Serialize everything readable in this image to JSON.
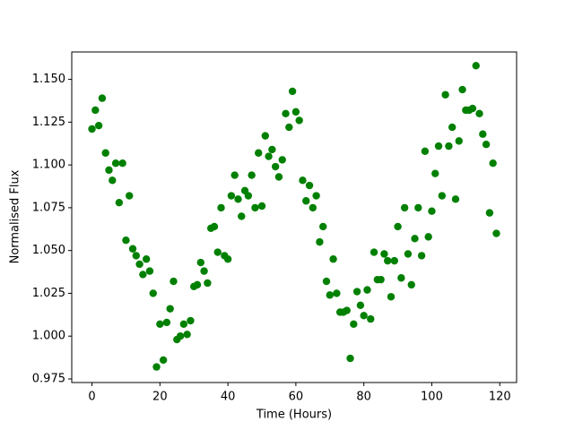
{
  "chart_data": {
    "type": "scatter",
    "xlabel": "Time (Hours)",
    "ylabel": "Normalised Flux",
    "color": "#008000",
    "x": [
      0,
      1,
      2,
      3,
      4,
      5,
      6,
      7,
      8,
      9,
      10,
      11,
      12,
      13,
      14,
      15,
      16,
      17,
      18,
      19,
      20,
      21,
      22,
      23,
      24,
      25,
      26,
      27,
      28,
      29,
      30,
      31,
      32,
      33,
      34,
      35,
      36,
      37,
      38,
      39,
      40,
      41,
      42,
      43,
      44,
      45,
      46,
      47,
      48,
      49,
      50,
      51,
      52,
      53,
      54,
      55,
      56,
      57,
      58,
      59,
      60,
      61,
      62,
      63,
      64,
      65,
      66,
      67,
      68,
      69,
      70,
      71,
      72,
      73,
      74,
      75,
      76,
      77,
      78,
      79,
      80,
      81,
      82,
      83,
      84,
      85,
      86,
      87,
      88,
      89,
      90,
      91,
      92,
      93,
      94,
      95,
      96,
      97,
      98,
      99,
      100,
      101,
      102,
      103,
      104,
      105,
      106,
      107,
      108,
      109,
      110,
      111,
      112,
      113,
      114,
      115,
      116,
      117,
      118,
      119
    ],
    "values": [
      1.121,
      1.132,
      1.123,
      1.139,
      1.107,
      1.097,
      1.091,
      1.101,
      1.078,
      1.101,
      1.056,
      1.082,
      1.051,
      1.047,
      1.042,
      1.036,
      1.045,
      1.038,
      1.025,
      0.982,
      1.007,
      0.986,
      1.008,
      1.016,
      1.032,
      0.998,
      1.0,
      1.007,
      1.001,
      1.009,
      1.029,
      1.03,
      1.043,
      1.038,
      1.031,
      1.063,
      1.064,
      1.049,
      1.075,
      1.047,
      1.045,
      1.082,
      1.094,
      1.08,
      1.07,
      1.085,
      1.082,
      1.094,
      1.075,
      1.107,
      1.076,
      1.117,
      1.105,
      1.109,
      1.099,
      1.093,
      1.103,
      1.13,
      1.122,
      1.143,
      1.131,
      1.126,
      1.091,
      1.079,
      1.088,
      1.075,
      1.082,
      1.055,
      1.064,
      1.032,
      1.024,
      1.045,
      1.025,
      1.014,
      1.014,
      1.015,
      0.987,
      1.007,
      1.026,
      1.018,
      1.012,
      1.027,
      1.01,
      1.049,
      1.033,
      1.033,
      1.048,
      1.044,
      1.023,
      1.044,
      1.064,
      1.034,
      1.075,
      1.048,
      1.03,
      1.057,
      1.075,
      1.047,
      1.108,
      1.058,
      1.073,
      1.095,
      1.111,
      1.082,
      1.141,
      1.111,
      1.122,
      1.08,
      1.114,
      1.144,
      1.132,
      1.132,
      1.133,
      1.158,
      1.13,
      1.118,
      1.112,
      1.072,
      1.101,
      1.06
    ],
    "xlim": [
      -5.95,
      124.95
    ],
    "ylim": [
      0.9729,
      1.166
    ],
    "xticks": [
      0,
      20,
      40,
      60,
      80,
      100,
      120
    ],
    "yticks": [
      {
        "value": 0.975,
        "label": "0.975"
      },
      {
        "value": 1.0,
        "label": "1.000"
      },
      {
        "value": 1.025,
        "label": "1.025"
      },
      {
        "value": 1.05,
        "label": "1.050"
      },
      {
        "value": 1.075,
        "label": "1.075"
      },
      {
        "value": 1.1,
        "label": "1.100"
      },
      {
        "value": 1.125,
        "label": "1.125"
      },
      {
        "value": 1.15,
        "label": "1.150"
      }
    ]
  }
}
